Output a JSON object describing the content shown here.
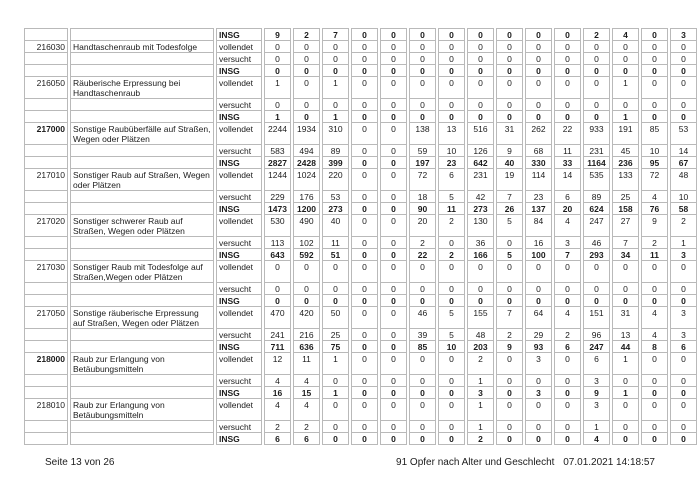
{
  "page": {
    "footer_left": "Seite 13 von 26",
    "footer_title": "91 Opfer nach Alter und Geschlecht",
    "footer_timestamp": "07.01.2021 14:18:57"
  },
  "colors": {
    "table_border": "#b9b9b9",
    "text": "#1c1c1c",
    "background": "#ffffff"
  },
  "table": {
    "num_value_columns": 15,
    "rows": [
      {
        "status": "INSG",
        "bold": true,
        "values": [
          9,
          2,
          7,
          0,
          0,
          0,
          0,
          0,
          0,
          0,
          0,
          2,
          4,
          0,
          3
        ]
      },
      {
        "code": "216030",
        "desc": "Handtaschenraub mit Todesfolge",
        "status": "vollendet",
        "values": [
          0,
          0,
          0,
          0,
          0,
          0,
          0,
          0,
          0,
          0,
          0,
          0,
          0,
          0,
          0
        ]
      },
      {
        "status": "versucht",
        "values": [
          0,
          0,
          0,
          0,
          0,
          0,
          0,
          0,
          0,
          0,
          0,
          0,
          0,
          0,
          0
        ]
      },
      {
        "status": "INSG",
        "bold": true,
        "values": [
          0,
          0,
          0,
          0,
          0,
          0,
          0,
          0,
          0,
          0,
          0,
          0,
          0,
          0,
          0
        ]
      },
      {
        "code": "216050",
        "desc": "Räuberische Erpressung bei Handtaschenraub",
        "status": "vollendet",
        "tall": true,
        "values": [
          1,
          0,
          1,
          0,
          0,
          0,
          0,
          0,
          0,
          0,
          0,
          0,
          1,
          0,
          0
        ]
      },
      {
        "status": "versucht",
        "values": [
          0,
          0,
          0,
          0,
          0,
          0,
          0,
          0,
          0,
          0,
          0,
          0,
          0,
          0,
          0
        ]
      },
      {
        "status": "INSG",
        "bold": true,
        "values": [
          1,
          0,
          1,
          0,
          0,
          0,
          0,
          0,
          0,
          0,
          0,
          0,
          1,
          0,
          0
        ]
      },
      {
        "code": "217000",
        "code_bold": true,
        "desc": "Sonstige Raubüberfälle auf Straßen, Wegen oder Plätzen",
        "status": "vollendet",
        "tall": true,
        "values": [
          2244,
          1934,
          310,
          0,
          0,
          138,
          13,
          516,
          31,
          262,
          22,
          933,
          191,
          85,
          53
        ]
      },
      {
        "status": "versucht",
        "values": [
          583,
          494,
          89,
          0,
          0,
          59,
          10,
          126,
          9,
          68,
          11,
          231,
          45,
          10,
          14
        ]
      },
      {
        "status": "INSG",
        "bold": true,
        "values": [
          2827,
          2428,
          399,
          0,
          0,
          197,
          23,
          642,
          40,
          330,
          33,
          1164,
          236,
          95,
          67
        ]
      },
      {
        "code": "217010",
        "desc": "Sonstiger Raub auf Straßen, Wegen oder Plätzen",
        "status": "vollendet",
        "tall": true,
        "values": [
          1244,
          1024,
          220,
          0,
          0,
          72,
          6,
          231,
          19,
          114,
          14,
          535,
          133,
          72,
          48
        ]
      },
      {
        "status": "versucht",
        "values": [
          229,
          176,
          53,
          0,
          0,
          18,
          5,
          42,
          7,
          23,
          6,
          89,
          25,
          4,
          10
        ]
      },
      {
        "status": "INSG",
        "bold": true,
        "values": [
          1473,
          1200,
          273,
          0,
          0,
          90,
          11,
          273,
          26,
          137,
          20,
          624,
          158,
          76,
          58
        ]
      },
      {
        "code": "217020",
        "desc": "Sonstiger schwerer Raub auf Straßen, Wegen oder Plätzen",
        "status": "vollendet",
        "tall": true,
        "values": [
          530,
          490,
          40,
          0,
          0,
          20,
          2,
          130,
          5,
          84,
          4,
          247,
          27,
          9,
          2
        ]
      },
      {
        "status": "versucht",
        "values": [
          113,
          102,
          11,
          0,
          0,
          2,
          0,
          36,
          0,
          16,
          3,
          46,
          7,
          2,
          1
        ]
      },
      {
        "status": "INSG",
        "bold": true,
        "values": [
          643,
          592,
          51,
          0,
          0,
          22,
          2,
          166,
          5,
          100,
          7,
          293,
          34,
          11,
          3
        ]
      },
      {
        "code": "217030",
        "desc": "Sonstiger Raub mit Todesfolge auf Straßen,Wegen oder Plätzen",
        "status": "vollendet",
        "tall": true,
        "values": [
          0,
          0,
          0,
          0,
          0,
          0,
          0,
          0,
          0,
          0,
          0,
          0,
          0,
          0,
          0
        ]
      },
      {
        "status": "versucht",
        "values": [
          0,
          0,
          0,
          0,
          0,
          0,
          0,
          0,
          0,
          0,
          0,
          0,
          0,
          0,
          0
        ]
      },
      {
        "status": "INSG",
        "bold": true,
        "values": [
          0,
          0,
          0,
          0,
          0,
          0,
          0,
          0,
          0,
          0,
          0,
          0,
          0,
          0,
          0
        ]
      },
      {
        "code": "217050",
        "desc": "Sonstige räuberische Erpressung auf Straßen, Wegen oder Plätzen",
        "status": "vollendet",
        "tall": true,
        "values": [
          470,
          420,
          50,
          0,
          0,
          46,
          5,
          155,
          7,
          64,
          4,
          151,
          31,
          4,
          3
        ]
      },
      {
        "status": "versucht",
        "values": [
          241,
          216,
          25,
          0,
          0,
          39,
          5,
          48,
          2,
          29,
          2,
          96,
          13,
          4,
          3
        ]
      },
      {
        "status": "INSG",
        "bold": true,
        "values": [
          711,
          636,
          75,
          0,
          0,
          85,
          10,
          203,
          9,
          93,
          6,
          247,
          44,
          8,
          6
        ]
      },
      {
        "code": "218000",
        "code_bold": true,
        "desc": "Raub zur Erlangung von Betäubungsmitteln",
        "status": "vollendet",
        "tall": true,
        "values": [
          12,
          11,
          1,
          0,
          0,
          0,
          0,
          2,
          0,
          3,
          0,
          6,
          1,
          0,
          0
        ]
      },
      {
        "status": "versucht",
        "values": [
          4,
          4,
          0,
          0,
          0,
          0,
          0,
          1,
          0,
          0,
          0,
          3,
          0,
          0,
          0
        ]
      },
      {
        "status": "INSG",
        "bold": true,
        "values": [
          16,
          15,
          1,
          0,
          0,
          0,
          0,
          3,
          0,
          3,
          0,
          9,
          1,
          0,
          0
        ]
      },
      {
        "code": "218010",
        "desc": "Raub zur Erlangung von Betäubungsmitteln",
        "status": "vollendet",
        "tall": true,
        "values": [
          4,
          4,
          0,
          0,
          0,
          0,
          0,
          1,
          0,
          0,
          0,
          3,
          0,
          0,
          0
        ]
      },
      {
        "status": "versucht",
        "values": [
          2,
          2,
          0,
          0,
          0,
          0,
          0,
          1,
          0,
          0,
          0,
          1,
          0,
          0,
          0
        ]
      },
      {
        "status": "INSG",
        "bold": true,
        "values": [
          6,
          6,
          0,
          0,
          0,
          0,
          0,
          2,
          0,
          0,
          0,
          4,
          0,
          0,
          0
        ]
      }
    ]
  }
}
